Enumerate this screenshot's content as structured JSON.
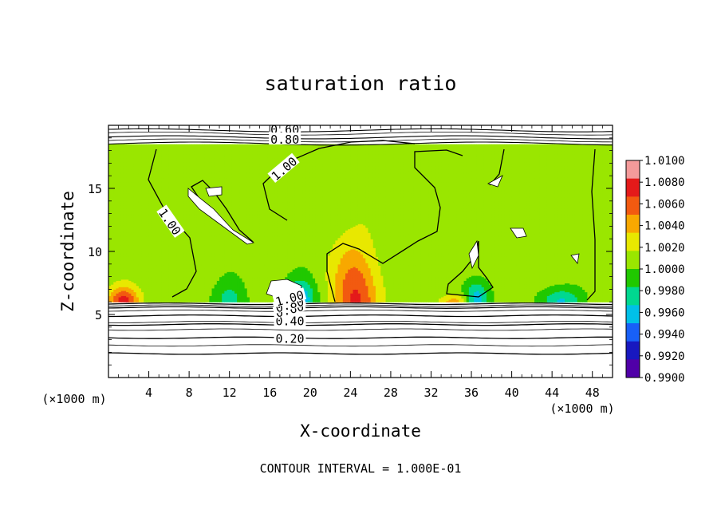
{
  "chart_data": {
    "type": "heatmap",
    "title": "saturation ratio",
    "xlabel": "X-coordinate",
    "ylabel": "Z-coordinate",
    "x_unit": "(×1000 m)",
    "y_unit": "(×1000 m)",
    "xlim": [
      0,
      50
    ],
    "ylim": [
      0,
      20
    ],
    "x_ticks": [
      "4",
      "8",
      "12",
      "16",
      "20",
      "24",
      "28",
      "32",
      "36",
      "40",
      "44",
      "48"
    ],
    "y_ticks": [
      "5",
      "10",
      "15"
    ],
    "footer": "CONTOUR INTERVAL = 1.000E-01",
    "colorbar": {
      "labels": [
        "1.0100",
        "1.0080",
        "1.0060",
        "1.0040",
        "1.0020",
        "1.0000",
        "0.9980",
        "0.9960",
        "0.9940",
        "0.9920",
        "0.9900"
      ],
      "colors": [
        "#f49a9a",
        "#e41a1a",
        "#f25a10",
        "#f8a800",
        "#e8e800",
        "#9ae600",
        "#20c800",
        "#00d890",
        "#00c0e8",
        "#1860f8",
        "#1818c0",
        "#5000a8"
      ]
    },
    "contour_labels": [
      {
        "text": "0.60",
        "x": 17.5,
        "z": 19.6
      },
      {
        "text": "0.80",
        "x": 17.5,
        "z": 18.8
      },
      {
        "text": "1.00",
        "x": 17.5,
        "z": 16.5
      },
      {
        "text": "1.00",
        "x": 6.0,
        "z": 12.3
      },
      {
        "text": "0.20",
        "x": 18.0,
        "z": 3.0
      },
      {
        "text": "0.40",
        "x": 18.0,
        "z": 4.4
      },
      {
        "text": "0.60",
        "x": 18.0,
        "z": 5.3
      },
      {
        "text": "0.80",
        "x": 18.0,
        "z": 5.7
      },
      {
        "text": "1.00",
        "x": 18.0,
        "z": 6.2
      }
    ],
    "cloud_base_z": 6.0,
    "cloud_top_z": 18.5,
    "hotspots": [
      {
        "x": 24.5,
        "z": 6.0,
        "peak": 1.007,
        "half_width": 2.2,
        "height": 4.5
      },
      {
        "x": 1.5,
        "z": 6.0,
        "peak": 1.008,
        "half_width": 1.5,
        "height": 1.2
      },
      {
        "x": 34.5,
        "z": 6.0,
        "peak": 1.004,
        "half_width": 1.5,
        "height": 0.6
      }
    ],
    "coldspots": [
      {
        "x": 19.0,
        "z": 6.2,
        "min": 0.9935,
        "half_width": 1.5,
        "height": 1.5
      },
      {
        "x": 36.5,
        "z": 6.2,
        "min": 0.9945,
        "half_width": 1.2,
        "height": 1.5
      },
      {
        "x": 45.0,
        "z": 6.1,
        "min": 0.9955,
        "half_width": 2.0,
        "height": 1.0
      },
      {
        "x": 12.0,
        "z": 6.1,
        "min": 0.9965,
        "half_width": 1.5,
        "height": 1.5
      }
    ]
  }
}
